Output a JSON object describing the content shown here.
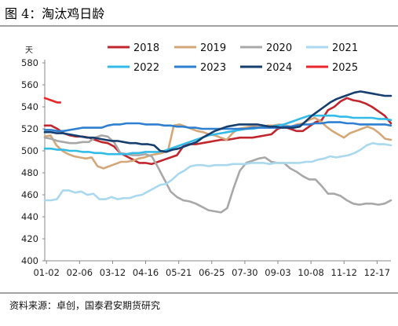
{
  "chart_data": {
    "type": "line",
    "title": "图 4：淘汰鸡日龄",
    "ylabel": "天",
    "ylim": [
      400,
      580
    ],
    "yticks": [
      400,
      420,
      440,
      460,
      480,
      500,
      520,
      540,
      560,
      580
    ],
    "x_labels": [
      "01-02",
      "02-06",
      "03-12",
      "04-16",
      "05-21",
      "06-25",
      "07-30",
      "09-03",
      "10-08",
      "11-12",
      "12-17"
    ],
    "source": "资料来源：卓创，国泰君安期货研究",
    "grid": false,
    "legend_position": "top",
    "series": [
      {
        "name": "2018",
        "color": "#c0262d",
        "values": [
          523,
          523,
          520,
          516,
          514,
          513,
          513,
          512,
          510,
          508,
          507,
          504,
          498,
          495,
          492,
          489,
          489,
          488,
          490,
          492,
          494,
          496,
          504,
          506,
          506,
          507,
          508,
          509,
          510,
          510,
          511,
          512,
          512,
          512,
          513,
          514,
          515,
          520,
          522,
          520,
          518,
          518,
          522,
          526,
          528,
          537,
          540,
          545,
          548,
          546,
          545,
          543,
          540,
          536,
          532,
          525
        ]
      },
      {
        "name": "2019",
        "color": "#d4a779",
        "values": [
          513,
          514,
          505,
          500,
          497,
          495,
          494,
          493,
          494,
          486,
          484,
          486,
          488,
          490,
          490,
          491,
          493,
          494,
          496,
          497,
          498,
          500,
          523,
          524,
          522,
          520,
          518,
          517,
          515,
          514,
          512,
          510,
          516,
          520,
          521,
          522,
          522,
          522,
          523,
          523,
          524,
          523,
          522,
          524,
          525,
          528,
          530,
          527,
          522,
          518,
          515,
          512,
          516,
          518,
          520,
          522,
          520,
          516,
          511,
          510
        ]
      },
      {
        "name": "2020",
        "color": "#a8a8a8",
        "values": [
          512,
          511,
          509,
          508,
          507,
          507,
          508,
          508,
          512,
          514,
          513,
          508,
          498,
          497,
          496,
          496,
          497,
          495,
          485,
          474,
          463,
          458,
          455,
          454,
          452,
          449,
          446,
          445,
          444,
          448,
          466,
          482,
          489,
          491,
          493,
          494,
          490,
          489,
          489,
          484,
          481,
          477,
          474,
          474,
          468,
          461,
          461,
          459,
          455,
          452,
          451,
          452,
          452,
          451,
          452,
          455
        ]
      },
      {
        "name": "2021",
        "color": "#a9d8ef",
        "values": [
          455,
          455,
          456,
          464,
          464,
          462,
          463,
          460,
          461,
          456,
          456,
          458,
          456,
          457,
          457,
          459,
          460,
          463,
          466,
          469,
          470,
          474,
          479,
          482,
          486,
          487,
          487,
          486,
          487,
          487,
          487,
          488,
          488,
          488,
          489,
          489,
          489,
          488,
          489,
          489,
          489,
          489,
          489,
          490,
          490,
          492,
          493,
          495,
          494,
          495,
          496,
          498,
          501,
          505,
          507,
          506,
          506,
          505
        ]
      },
      {
        "name": "2022",
        "color": "#33bbe8",
        "values": [
          502,
          502,
          501,
          501,
          500,
          500,
          499,
          499,
          498,
          498,
          497,
          497,
          497,
          497,
          498,
          498,
          499,
          499,
          499,
          500,
          502,
          504,
          506,
          508,
          510,
          512,
          514,
          515,
          516,
          517,
          518,
          519,
          520,
          520,
          521,
          522,
          522,
          523,
          524,
          526,
          528,
          530,
          532,
          532,
          532,
          532,
          532,
          531,
          531,
          530,
          530,
          530,
          530,
          529,
          529,
          528
        ]
      },
      {
        "name": "2023",
        "color": "#2e7fd0",
        "values": [
          519,
          519,
          518,
          518,
          519,
          520,
          521,
          521,
          521,
          521,
          523,
          524,
          524,
          525,
          525,
          525,
          524,
          524,
          524,
          523,
          523,
          522,
          522,
          521,
          521,
          520,
          520,
          520,
          520,
          520,
          520,
          520,
          520,
          521,
          521,
          521,
          521,
          521,
          522,
          522,
          523,
          524,
          524,
          525,
          525,
          526,
          526,
          526,
          525,
          525,
          524,
          524,
          524,
          524,
          524,
          523
        ]
      },
      {
        "name": "2024",
        "color": "#163e6e",
        "values": [
          517,
          517,
          516,
          516,
          515,
          514,
          513,
          512,
          512,
          511,
          510,
          509,
          509,
          508,
          507,
          507,
          506,
          506,
          505,
          500,
          499,
          501,
          502,
          504,
          506,
          508,
          512,
          515,
          518,
          520,
          522,
          523,
          524,
          524,
          524,
          524,
          523,
          522,
          522,
          521,
          521,
          521,
          522,
          527,
          532,
          536,
          540,
          544,
          547,
          549,
          551,
          553,
          554,
          553,
          552,
          551,
          550,
          550
        ]
      },
      {
        "name": "2025",
        "color": "#e8262b",
        "values": [
          548,
          547,
          546,
          545,
          544,
          544
        ]
      }
    ]
  }
}
